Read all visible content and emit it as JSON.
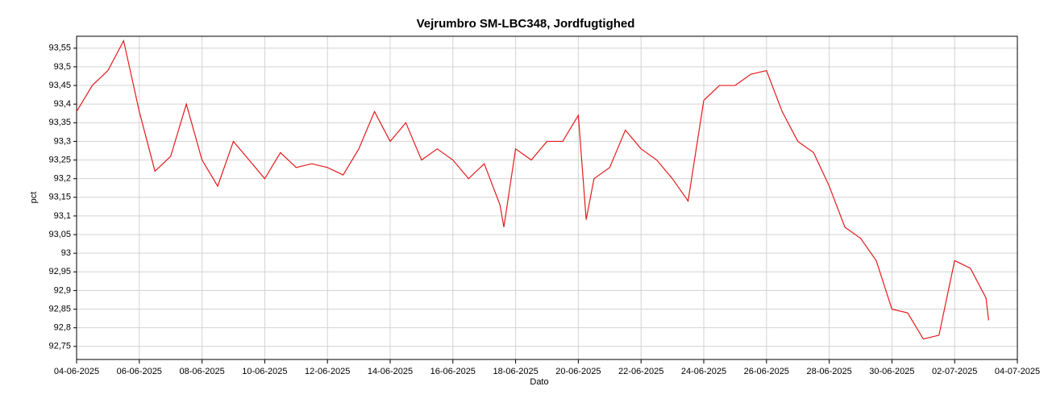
{
  "chart_data": {
    "type": "line",
    "title": "Vejrumbro SM-LBC348, Jordfugtighed",
    "xlabel": "Dato",
    "ylabel": "pct",
    "color": "#e41a1c",
    "grid": true,
    "x": [
      "2025-06-04T00:00",
      "2025-06-04T12:00",
      "2025-06-05T00:00",
      "2025-06-05T12:00",
      "2025-06-06T00:00",
      "2025-06-06T12:00",
      "2025-06-07T00:00",
      "2025-06-07T12:00",
      "2025-06-08T00:00",
      "2025-06-08T12:00",
      "2025-06-09T00:00",
      "2025-06-09T12:00",
      "2025-06-10T00:00",
      "2025-06-10T12:00",
      "2025-06-11T00:00",
      "2025-06-11T12:00",
      "2025-06-12T00:00",
      "2025-06-12T12:00",
      "2025-06-13T00:00",
      "2025-06-13T12:00",
      "2025-06-14T00:00",
      "2025-06-14T12:00",
      "2025-06-15T00:00",
      "2025-06-15T12:00",
      "2025-06-16T00:00",
      "2025-06-16T12:00",
      "2025-06-17T00:00",
      "2025-06-17T12:00",
      "2025-06-17T15:00",
      "2025-06-18T00:00",
      "2025-06-18T12:00",
      "2025-06-19T00:00",
      "2025-06-19T12:00",
      "2025-06-20T00:00",
      "2025-06-20T06:00",
      "2025-06-20T12:00",
      "2025-06-21T00:00",
      "2025-06-21T12:00",
      "2025-06-22T00:00",
      "2025-06-22T12:00",
      "2025-06-23T00:00",
      "2025-06-23T12:00",
      "2025-06-24T00:00",
      "2025-06-24T12:00",
      "2025-06-25T00:00",
      "2025-06-25T12:00",
      "2025-06-26T00:00",
      "2025-06-26T12:00",
      "2025-06-27T00:00",
      "2025-06-27T12:00",
      "2025-06-28T00:00",
      "2025-06-28T12:00",
      "2025-06-29T00:00",
      "2025-06-29T12:00",
      "2025-06-30T00:00",
      "2025-06-30T12:00",
      "2025-07-01T00:00",
      "2025-07-01T12:00",
      "2025-07-02T00:00",
      "2025-07-02T12:00",
      "2025-07-03T00:00",
      "2025-07-03T02:00"
    ],
    "values": [
      93.38,
      93.45,
      93.49,
      93.57,
      93.38,
      93.22,
      93.26,
      93.4,
      93.25,
      93.18,
      93.3,
      93.25,
      93.2,
      93.27,
      93.23,
      93.24,
      93.23,
      93.21,
      93.28,
      93.38,
      93.3,
      93.35,
      93.25,
      93.28,
      93.25,
      93.2,
      93.24,
      93.13,
      93.07,
      93.28,
      93.25,
      93.3,
      93.3,
      93.37,
      93.09,
      93.2,
      93.23,
      93.33,
      93.28,
      93.25,
      93.2,
      93.14,
      93.41,
      93.45,
      93.45,
      93.48,
      93.49,
      93.38,
      93.3,
      93.27,
      93.18,
      93.07,
      93.04,
      92.98,
      92.85,
      92.84,
      92.77,
      92.78,
      92.98,
      92.96,
      92.88,
      92.82
    ],
    "xlim": [
      "2025-06-04",
      "2025-07-04"
    ],
    "xticks": [
      {
        "value": "2025-06-04",
        "label": "04-06-2025"
      },
      {
        "value": "2025-06-06",
        "label": "06-06-2025"
      },
      {
        "value": "2025-06-08",
        "label": "08-06-2025"
      },
      {
        "value": "2025-06-10",
        "label": "10-06-2025"
      },
      {
        "value": "2025-06-12",
        "label": "12-06-2025"
      },
      {
        "value": "2025-06-14",
        "label": "14-06-2025"
      },
      {
        "value": "2025-06-16",
        "label": "16-06-2025"
      },
      {
        "value": "2025-06-18",
        "label": "18-06-2025"
      },
      {
        "value": "2025-06-20",
        "label": "20-06-2025"
      },
      {
        "value": "2025-06-22",
        "label": "22-06-2025"
      },
      {
        "value": "2025-06-24",
        "label": "24-06-2025"
      },
      {
        "value": "2025-06-26",
        "label": "26-06-2025"
      },
      {
        "value": "2025-06-28",
        "label": "28-06-2025"
      },
      {
        "value": "2025-06-30",
        "label": "30-06-2025"
      },
      {
        "value": "2025-07-02",
        "label": "02-07-2025"
      },
      {
        "value": "2025-07-04",
        "label": "04-07-2025"
      }
    ],
    "ylim": [
      92.715,
      93.582
    ],
    "yticks": [
      {
        "value": 92.75,
        "label": "92,75"
      },
      {
        "value": 92.8,
        "label": "92,8"
      },
      {
        "value": 92.85,
        "label": "92,85"
      },
      {
        "value": 92.9,
        "label": "92,9"
      },
      {
        "value": 92.95,
        "label": "92,95"
      },
      93,
      {
        "value": 93.05,
        "label": "93,05"
      },
      {
        "value": 93.1,
        "label": "93,1"
      },
      {
        "value": 93.15,
        "label": "93,15"
      },
      {
        "value": 93.2,
        "label": "93,2"
      },
      {
        "value": 93.25,
        "label": "93,25"
      },
      {
        "value": 93.3,
        "label": "93,3"
      },
      {
        "value": 93.35,
        "label": "93,35"
      },
      {
        "value": 93.4,
        "label": "93,4"
      },
      {
        "value": 93.45,
        "label": "93,45"
      },
      {
        "value": 93.5,
        "label": "93,5"
      },
      {
        "value": 93.55,
        "label": "93,55"
      }
    ]
  }
}
